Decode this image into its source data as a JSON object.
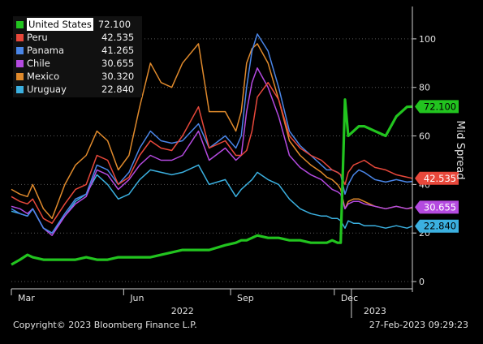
{
  "chart_data": {
    "type": "line",
    "ylabel": "Mid Spread",
    "ylim": [
      -3,
      112
    ],
    "yticks": [
      0,
      20,
      40,
      60,
      80,
      100
    ],
    "x_month_labels": [
      "Mar",
      "Jun",
      "Sep",
      "Dec"
    ],
    "x_year_labels": [
      "2022",
      "2023"
    ],
    "series": [
      {
        "name": "United States",
        "value": "72.100",
        "color": "#22c41f",
        "x": [
          0,
          8,
          15,
          20,
          30,
          38,
          50,
          60,
          70,
          80,
          90,
          100,
          110,
          120,
          130,
          140,
          150,
          160,
          175,
          185,
          200,
          210,
          215,
          220,
          225,
          230,
          240,
          250,
          260,
          270,
          280,
          290,
          295,
          300,
          305,
          308,
          312,
          315,
          320,
          325,
          330,
          340,
          350,
          360,
          370,
          375
        ],
        "values": [
          7,
          9,
          11,
          10,
          9,
          9,
          9,
          9,
          10,
          9,
          9,
          10,
          10,
          10,
          10,
          11,
          12,
          13,
          13,
          13,
          15,
          16,
          17,
          17,
          18,
          19,
          18,
          18,
          17,
          17,
          16,
          16,
          16,
          17,
          16,
          16,
          75,
          60,
          62,
          64,
          64,
          62,
          60,
          68,
          72,
          72.1
        ]
      },
      {
        "name": "Peru",
        "value": "42.535",
        "color": "#e8483b",
        "x": [
          0,
          8,
          15,
          20,
          30,
          38,
          50,
          60,
          70,
          80,
          90,
          100,
          110,
          120,
          130,
          140,
          150,
          160,
          175,
          185,
          200,
          210,
          215,
          220,
          225,
          230,
          240,
          250,
          260,
          270,
          280,
          290,
          295,
          300,
          305,
          308,
          312,
          315,
          320,
          325,
          330,
          340,
          350,
          360,
          370,
          375
        ],
        "values": [
          35,
          33,
          32,
          34,
          26,
          24,
          32,
          38,
          40,
          52,
          50,
          40,
          43,
          52,
          58,
          55,
          54,
          60,
          72,
          55,
          58,
          52,
          52,
          54,
          62,
          76,
          82,
          75,
          60,
          55,
          52,
          50,
          48,
          46,
          45,
          44,
          40,
          45,
          48,
          49,
          50,
          47,
          46,
          44,
          43,
          42.535
        ]
      },
      {
        "name": "Panama",
        "value": "41.265",
        "color": "#4a86e8",
        "x": [
          0,
          8,
          15,
          20,
          30,
          38,
          50,
          60,
          70,
          80,
          90,
          100,
          110,
          120,
          130,
          140,
          150,
          160,
          175,
          185,
          200,
          210,
          215,
          220,
          225,
          230,
          240,
          250,
          260,
          270,
          280,
          290,
          295,
          300,
          305,
          308,
          312,
          315,
          320,
          325,
          330,
          340,
          350,
          360,
          370,
          375
        ],
        "values": [
          30,
          28,
          27,
          30,
          22,
          20,
          28,
          34,
          36,
          48,
          46,
          40,
          45,
          55,
          62,
          58,
          57,
          58,
          65,
          55,
          60,
          55,
          60,
          80,
          95,
          102,
          95,
          80,
          62,
          56,
          52,
          48,
          46,
          46,
          45,
          44,
          36,
          40,
          44,
          46,
          45,
          42,
          41,
          42,
          41,
          41.265
        ]
      },
      {
        "name": "Chile",
        "value": "30.655",
        "color": "#b44ae0",
        "x": [
          0,
          8,
          15,
          20,
          30,
          38,
          50,
          60,
          70,
          80,
          90,
          100,
          110,
          120,
          130,
          140,
          150,
          160,
          175,
          185,
          200,
          210,
          215,
          220,
          225,
          230,
          240,
          250,
          260,
          270,
          280,
          290,
          295,
          300,
          305,
          308,
          312,
          315,
          320,
          325,
          330,
          340,
          350,
          360,
          370,
          375
        ],
        "values": [
          31,
          30,
          28,
          30,
          22,
          19,
          27,
          32,
          35,
          46,
          44,
          38,
          42,
          48,
          52,
          50,
          50,
          52,
          62,
          50,
          55,
          50,
          52,
          70,
          82,
          88,
          80,
          68,
          52,
          47,
          44,
          42,
          40,
          38,
          37,
          36,
          30,
          32,
          33,
          33,
          32,
          31,
          30,
          31,
          30,
          30.655
        ]
      },
      {
        "name": "Mexico",
        "value": "30.320",
        "color": "#e08a2c",
        "x": [
          0,
          8,
          15,
          20,
          30,
          38,
          50,
          60,
          70,
          80,
          90,
          100,
          110,
          120,
          130,
          140,
          150,
          160,
          175,
          185,
          200,
          210,
          215,
          220,
          225,
          230,
          240,
          250,
          260,
          270,
          280,
          290,
          295,
          300,
          305,
          308,
          312,
          315,
          320,
          325,
          330,
          340,
          350,
          360,
          370,
          375
        ],
        "values": [
          38,
          36,
          35,
          40,
          30,
          26,
          40,
          48,
          52,
          62,
          58,
          46,
          52,
          72,
          90,
          82,
          80,
          90,
          98,
          70,
          70,
          62,
          70,
          90,
          96,
          98,
          90,
          75,
          58,
          52,
          48,
          45,
          43,
          42,
          40,
          38,
          30,
          33,
          34,
          34,
          33,
          31,
          30,
          31,
          30,
          30.32
        ]
      },
      {
        "name": "Uruguay",
        "value": "22.840",
        "color": "#3bb0e0",
        "x": [
          0,
          8,
          15,
          20,
          30,
          38,
          50,
          60,
          70,
          80,
          90,
          100,
          110,
          120,
          130,
          140,
          150,
          160,
          175,
          185,
          200,
          210,
          215,
          220,
          225,
          230,
          240,
          250,
          260,
          270,
          280,
          290,
          295,
          300,
          305,
          308,
          312,
          315,
          320,
          325,
          330,
          340,
          350,
          360,
          370,
          375
        ],
        "values": [
          29,
          28,
          27,
          30,
          22,
          20,
          27,
          33,
          36,
          44,
          40,
          34,
          36,
          42,
          46,
          45,
          44,
          45,
          48,
          40,
          42,
          35,
          38,
          40,
          42,
          45,
          42,
          40,
          34,
          30,
          28,
          27,
          27,
          26,
          26,
          25,
          22,
          25,
          24,
          24,
          23,
          23,
          22,
          23,
          22,
          22.84
        ]
      }
    ]
  },
  "footer": {
    "copyright": "Copyright© 2023 Bloomberg Finance L.P.",
    "timestamp": "27-Feb-2023 09:29:23"
  }
}
